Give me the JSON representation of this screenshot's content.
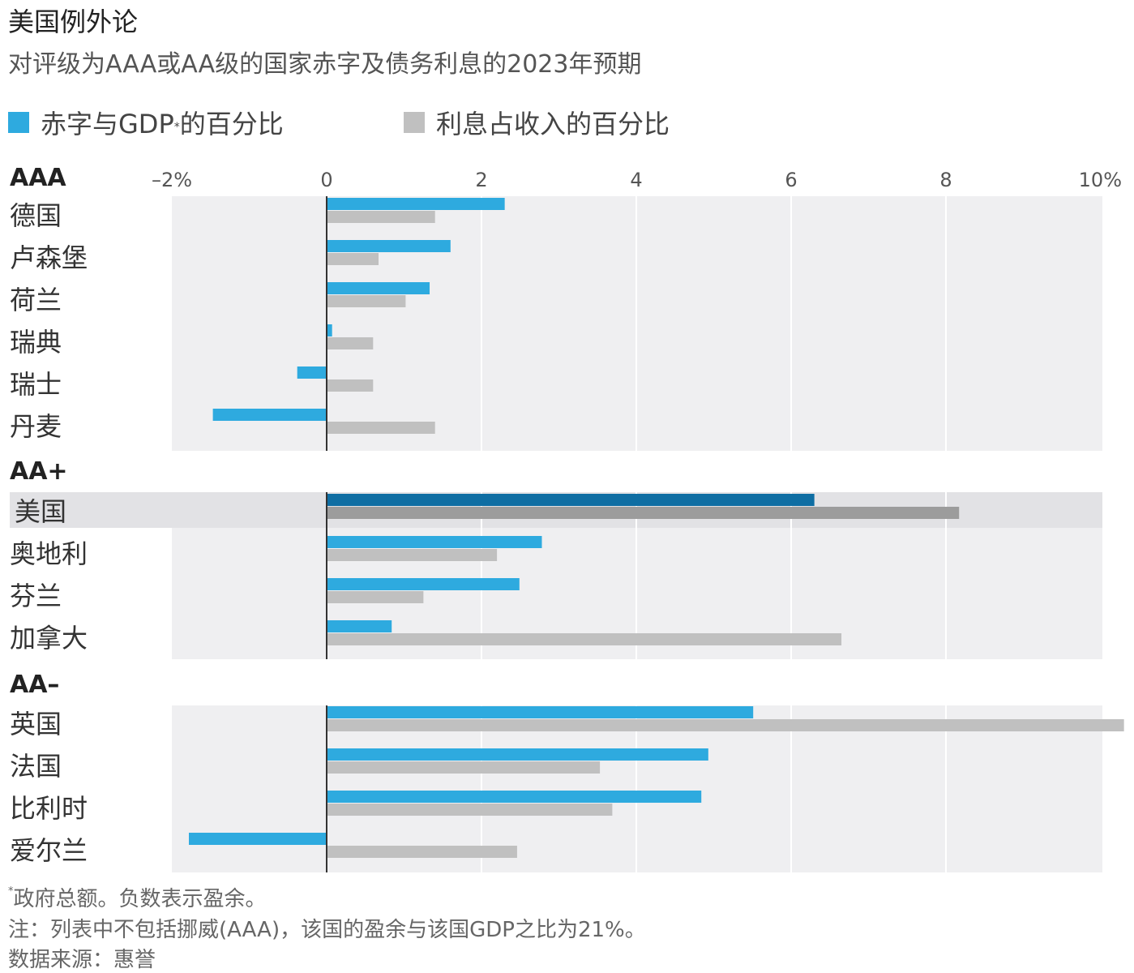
{
  "title": "美国例外论",
  "subtitle": "对评级为AAA或AA级的国家赤字及债务利息的2023年预期",
  "legend": [
    {
      "marker": "*",
      "label_main": "赤字与GDP",
      "label_tail": "的百分比",
      "color": "#2eaadf"
    },
    {
      "marker": "",
      "label_main": "利息占收入的百分比",
      "label_tail": "",
      "color": "#c0c0c0"
    }
  ],
  "colors": {
    "deficit": "#2eaadf",
    "interest": "#c0c0c0",
    "deficit_highlight": "#0f6ea3",
    "interest_highlight": "#9c9c9c",
    "panel_bg": "#efeff1",
    "highlight_bg": "#e2e2e5"
  },
  "chart_data": {
    "type": "bar",
    "orientation": "horizontal",
    "xlim": [
      -2,
      10
    ],
    "ticks": [
      -2,
      0,
      2,
      4,
      6,
      8,
      10
    ],
    "tick_labels": [
      "–2%",
      "0",
      "2",
      "4",
      "6",
      "8",
      "10%"
    ],
    "grid": true,
    "legend_position": "top-left",
    "series": [
      {
        "key": "deficit",
        "name": "赤字与GDP*的百分比"
      },
      {
        "key": "interest",
        "name": "利息占收入的百分比"
      }
    ],
    "groups": [
      {
        "rating": "AAA",
        "countries": [
          {
            "name": "德国",
            "deficit": 2.3,
            "interest": 1.4
          },
          {
            "name": "卢森堡",
            "deficit": 1.6,
            "interest": 0.67
          },
          {
            "name": "荷兰",
            "deficit": 1.33,
            "interest": 1.02
          },
          {
            "name": "瑞典",
            "deficit": 0.07,
            "interest": 0.6
          },
          {
            "name": "瑞士",
            "deficit": -0.38,
            "interest": 0.6
          },
          {
            "name": "丹麦",
            "deficit": -1.47,
            "interest": 1.4
          }
        ]
      },
      {
        "rating": "AA+",
        "countries": [
          {
            "name": "美国",
            "deficit": 6.3,
            "interest": 8.17,
            "highlight": true
          },
          {
            "name": "奥地利",
            "deficit": 2.78,
            "interest": 2.2
          },
          {
            "name": "芬兰",
            "deficit": 2.49,
            "interest": 1.25
          },
          {
            "name": "加拿大",
            "deficit": 0.84,
            "interest": 6.65
          }
        ]
      },
      {
        "rating": "AA–",
        "countries": [
          {
            "name": "英国",
            "deficit": 5.51,
            "interest": 10.3
          },
          {
            "name": "法国",
            "deficit": 4.93,
            "interest": 3.53
          },
          {
            "name": "比利时",
            "deficit": 4.84,
            "interest": 3.69
          },
          {
            "name": "爱尔兰",
            "deficit": -1.78,
            "interest": 2.46
          }
        ]
      }
    ]
  },
  "footnotes": {
    "asterisk_marker": "*",
    "asterisk": "政府总额。负数表示盈余。",
    "note": "注：列表中不包括挪威(AAA)，该国的盈余与该国GDP之比为21%。",
    "source": "数据来源：惠誉"
  }
}
